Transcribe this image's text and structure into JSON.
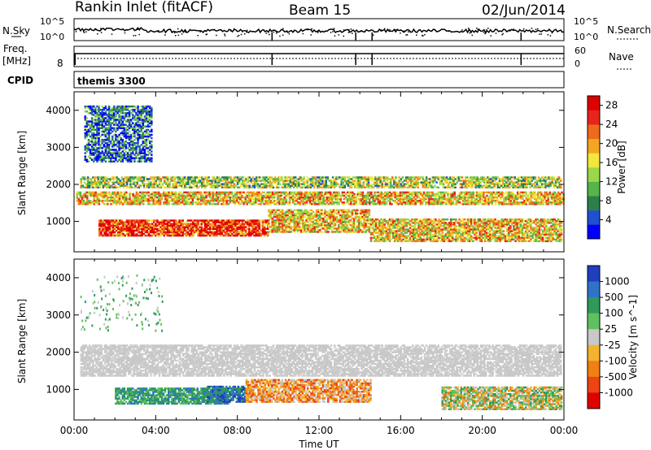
{
  "header": {
    "station": "Rankin Inlet (fitACF)",
    "beam": "Beam 15",
    "date": "02/Jun/2014"
  },
  "strip_nsky": {
    "left_label": "N.Sky",
    "right_label": "N.Search",
    "left_ticks": [
      "10^5",
      "10^0"
    ],
    "right_ticks": [
      "10^5",
      "10^0"
    ]
  },
  "strip_freq": {
    "left_label_top": "Freq.",
    "left_label_unit": "[MHz]",
    "right_label": "Nave",
    "left_ticks": [
      "8"
    ],
    "right_ticks": [
      "60",
      "0"
    ]
  },
  "cpid": {
    "label": "CPID",
    "program": "themis 3300"
  },
  "chart_data": [
    {
      "type": "heatmap",
      "panel": "power",
      "ylabel": "Slant Range [km]",
      "xlabel": "",
      "y_ticks": [
        1000,
        2000,
        3000,
        4000
      ],
      "x_ticks": [
        "00:00",
        "04:00",
        "08:00",
        "12:00",
        "16:00",
        "20:00",
        "00:00"
      ],
      "xlim_hours": [
        0,
        24
      ],
      "ylim": [
        180,
        4500
      ],
      "colorbar": {
        "label": "Power [dB]",
        "ticks": [
          4,
          8,
          12,
          16,
          20,
          24,
          28
        ],
        "range": [
          0,
          30
        ],
        "colors": [
          "#0000ff",
          "#1f50d0",
          "#2d7f4a",
          "#55b54a",
          "#9ad84a",
          "#f0e83c",
          "#f4a621",
          "#ef6a1b",
          "#e8241c",
          "#e00000"
        ]
      },
      "echo_regions": [
        {
          "start_h": 0.3,
          "end_h": 23.8,
          "range_km": [
            1900,
            2180
          ],
          "level": 0.45
        },
        {
          "start_h": 0.1,
          "end_h": 24.0,
          "range_km": [
            1450,
            1800
          ],
          "level": 0.6
        },
        {
          "start_h": 1.2,
          "end_h": 9.5,
          "range_km": [
            600,
            1050
          ],
          "level": 0.85
        },
        {
          "start_h": 9.5,
          "end_h": 14.5,
          "range_km": [
            700,
            1300
          ],
          "level": 0.6
        },
        {
          "start_h": 14.5,
          "end_h": 23.9,
          "range_km": [
            450,
            1050
          ],
          "level": 0.6
        },
        {
          "start_h": 0.5,
          "end_h": 3.8,
          "range_km": [
            2600,
            4100
          ],
          "level": 0.2
        }
      ]
    },
    {
      "type": "heatmap",
      "panel": "velocity",
      "ylabel": "Slant Range [km]",
      "xlabel": "Time UT",
      "y_ticks": [
        1000,
        2000,
        3000,
        4000
      ],
      "x_ticks": [
        "00:00",
        "04:00",
        "08:00",
        "12:00",
        "16:00",
        "20:00",
        "00:00"
      ],
      "xlim_hours": [
        0,
        24
      ],
      "ylim": [
        180,
        4500
      ],
      "colorbar": {
        "label": "Velocity [m s^-1]",
        "ticks": [
          1000,
          500,
          100,
          25,
          -25,
          -100,
          -500,
          -1000
        ],
        "colors": [
          "#1f3fbf",
          "#2f73c8",
          "#2f9a5a",
          "#60c060",
          "#c8c8c8",
          "#f3b32e",
          "#f07f14",
          "#ec4513",
          "#e00000"
        ]
      },
      "echo_regions": [
        {
          "start_h": 0.3,
          "end_h": 23.8,
          "range_km": [
            1350,
            2180
          ],
          "color": "gray"
        },
        {
          "start_h": 2.0,
          "end_h": 7.5,
          "range_km": [
            600,
            1050
          ],
          "color": "green"
        },
        {
          "start_h": 6.5,
          "end_h": 8.4,
          "range_km": [
            650,
            1100
          ],
          "color": "blue"
        },
        {
          "start_h": 8.4,
          "end_h": 14.5,
          "range_km": [
            650,
            1250
          ],
          "color": "orange"
        },
        {
          "start_h": 18.0,
          "end_h": 23.9,
          "range_km": [
            450,
            1050
          ],
          "color": "green-orange"
        }
      ]
    }
  ]
}
